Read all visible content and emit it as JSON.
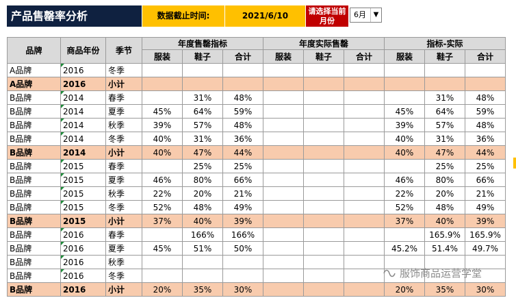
{
  "header": {
    "title": "产品售罄率分析",
    "cutoff_label": "数据截止时间:",
    "cutoff_date": "2021/6/10",
    "month_prompt": "请选择当前月份",
    "month_value": "6月"
  },
  "table": {
    "group_headers": [
      "年度售罄指标",
      "年度实际售罄",
      "指标-实际"
    ],
    "fixed_headers": [
      "品牌",
      "商品年份",
      "季节"
    ],
    "sub_headers": [
      "服装",
      "鞋子",
      "合计"
    ],
    "rows": [
      {
        "brand": "A品牌",
        "year": "2016",
        "season": "冬季",
        "subtotal": false,
        "v": [
          "",
          "",
          "",
          "",
          "",
          "",
          "",
          "",
          ""
        ]
      },
      {
        "brand": "A品牌",
        "year": "2016",
        "season": "小计",
        "subtotal": true,
        "v": [
          "",
          "",
          "",
          "",
          "",
          "",
          "",
          "",
          ""
        ]
      },
      {
        "brand": "B品牌",
        "year": "2014",
        "season": "春季",
        "subtotal": false,
        "v": [
          "",
          "31%",
          "48%",
          "",
          "",
          "",
          "",
          "31%",
          "48%"
        ]
      },
      {
        "brand": "B品牌",
        "year": "2014",
        "season": "夏季",
        "subtotal": false,
        "v": [
          "45%",
          "64%",
          "59%",
          "",
          "",
          "",
          "45%",
          "64%",
          "59%"
        ]
      },
      {
        "brand": "B品牌",
        "year": "2014",
        "season": "秋季",
        "subtotal": false,
        "v": [
          "39%",
          "57%",
          "48%",
          "",
          "",
          "",
          "39%",
          "57%",
          "48%"
        ]
      },
      {
        "brand": "B品牌",
        "year": "2014",
        "season": "冬季",
        "subtotal": false,
        "v": [
          "40%",
          "31%",
          "36%",
          "",
          "",
          "",
          "40%",
          "31%",
          "36%"
        ]
      },
      {
        "brand": "B品牌",
        "year": "2014",
        "season": "小计",
        "subtotal": true,
        "v": [
          "40%",
          "47%",
          "44%",
          "",
          "",
          "",
          "40%",
          "47%",
          "44%"
        ]
      },
      {
        "brand": "B品牌",
        "year": "2015",
        "season": "春季",
        "subtotal": false,
        "v": [
          "",
          "25%",
          "25%",
          "",
          "",
          "",
          "",
          "25%",
          "25%"
        ]
      },
      {
        "brand": "B品牌",
        "year": "2015",
        "season": "夏季",
        "subtotal": false,
        "v": [
          "46%",
          "80%",
          "66%",
          "",
          "",
          "",
          "46%",
          "80%",
          "66%"
        ]
      },
      {
        "brand": "B品牌",
        "year": "2015",
        "season": "秋季",
        "subtotal": false,
        "v": [
          "22%",
          "20%",
          "21%",
          "",
          "",
          "",
          "22%",
          "20%",
          "21%"
        ]
      },
      {
        "brand": "B品牌",
        "year": "2015",
        "season": "冬季",
        "subtotal": false,
        "v": [
          "52%",
          "48%",
          "49%",
          "",
          "",
          "",
          "52%",
          "48%",
          "49%"
        ]
      },
      {
        "brand": "B品牌",
        "year": "2015",
        "season": "小计",
        "subtotal": true,
        "v": [
          "37%",
          "40%",
          "39%",
          "",
          "",
          "",
          "37%",
          "40%",
          "39%"
        ]
      },
      {
        "brand": "B品牌",
        "year": "2016",
        "season": "春季",
        "subtotal": false,
        "v": [
          "",
          "166%",
          "166%",
          "",
          "",
          "",
          "",
          "165.9%",
          "165.9%"
        ]
      },
      {
        "brand": "B品牌",
        "year": "2016",
        "season": "夏季",
        "subtotal": false,
        "v": [
          "45%",
          "51%",
          "50%",
          "",
          "",
          "",
          "45.2%",
          "51.4%",
          "49.7%"
        ]
      },
      {
        "brand": "B品牌",
        "year": "2016",
        "season": "秋季",
        "subtotal": false,
        "v": [
          "",
          "",
          "",
          "",
          "",
          "",
          "",
          "",
          ""
        ]
      },
      {
        "brand": "B品牌",
        "year": "2016",
        "season": "冬季",
        "subtotal": false,
        "v": [
          "",
          "",
          "",
          "",
          "",
          "",
          "",
          "",
          ""
        ]
      },
      {
        "brand": "B品牌",
        "year": "2016",
        "season": "小计",
        "subtotal": true,
        "v": [
          "20%",
          "35%",
          "30%",
          "",
          "",
          "",
          "20%",
          "35%",
          "30%"
        ]
      }
    ]
  },
  "watermark": {
    "text": "服饰商品运营学堂",
    "icon": "wechat-channel-icon"
  },
  "colors": {
    "title_bg": "#0f2140",
    "cutoff_bg": "#ffc000",
    "prompt_bg": "#c00000",
    "subtotal_bg": "#f8cbad",
    "header_bg": "#dadada"
  }
}
